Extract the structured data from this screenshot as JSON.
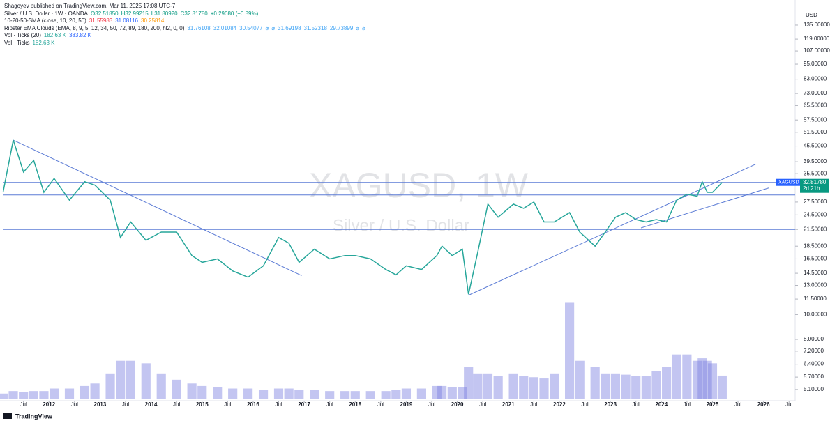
{
  "chart_data": {
    "type": "line",
    "publisher": "Shagoyev published on TradingView.com, Mar 11, 2025 17:08 UTC-7",
    "legend": [
      {
        "label": "Silver / U.S. Dollar · 1W · OANDA",
        "values": [
          "O32.51850",
          "H32.99215",
          "L31.80920",
          "C32.81780",
          "+0.29080 (+0.89%)"
        ],
        "color": "#089981"
      },
      {
        "label": "10-20-50-SMA (close, 10, 20, 50)",
        "values": [
          "31.55983",
          "31.08116",
          "30.25814"
        ],
        "colors": [
          "#f23645",
          "#2962ff",
          "#ff9800"
        ]
      },
      {
        "label": "Ripster EMA Clouds (EMA, 8, 9, 5, 12, 34, 50, 72, 89, 180, 200, hl2, 0, 0)",
        "values": [
          "31.76108",
          "32.01084",
          "30.54077",
          "⌀",
          "⌀",
          "31.69198",
          "31.52318",
          "29.73899",
          "⌀",
          "⌀"
        ],
        "color": "#42a5f5"
      },
      {
        "label": "Vol · Ticks (20)",
        "values": [
          "182.63 K",
          "383.82 K"
        ],
        "colors": [
          "#26a69a",
          "#2962ff"
        ]
      },
      {
        "label": "Vol · Ticks",
        "values": [
          "182.63 K"
        ],
        "color": "#26a69a"
      }
    ],
    "watermark": "XAGUSD, 1W",
    "watermark_subtitle": "Silver / U.S. Dollar",
    "currency": "USD",
    "symbol": "XAGUSD",
    "last_price_label": "32.81780",
    "countdown": "2d 21h",
    "footer": "TradingView",
    "log_scale": true,
    "xlim": [
      2011.04,
      2026.62
    ],
    "ylim": [
      4.61,
      149.2
    ],
    "y2lim": [
      0,
      840
    ],
    "xticks": [
      {
        "value": 2011.5,
        "label": "Jul"
      },
      2012,
      {
        "value": 2012.5,
        "label": "Jul"
      },
      2013,
      {
        "value": 2013.5,
        "label": "Jul"
      },
      2014,
      {
        "value": 2014.5,
        "label": "Jul"
      },
      2015,
      {
        "value": 2015.5,
        "label": "Jul"
      },
      2016,
      {
        "value": 2016.5,
        "label": "Jul"
      },
      2017,
      {
        "value": 2017.5,
        "label": "Jul"
      },
      2018,
      {
        "value": 2018.5,
        "label": "Jul"
      },
      2019,
      {
        "value": 2019.5,
        "label": "Jul"
      },
      2020,
      {
        "value": 2020.5,
        "label": "Jul"
      },
      2021,
      {
        "value": 2021.5,
        "label": "Jul"
      },
      2022,
      {
        "value": 2022.5,
        "label": "Jul"
      },
      2023,
      {
        "value": 2023.5,
        "label": "Jul"
      },
      2024,
      {
        "value": 2024.5,
        "label": "Jul"
      },
      2025,
      {
        "value": 2025.5,
        "label": "Jul"
      },
      2026,
      {
        "value": 2026.5,
        "label": "Jul"
      }
    ],
    "yticks": [
      {
        "value": 135,
        "label": "135.00000"
      },
      {
        "value": 119,
        "label": "119.00000"
      },
      {
        "value": 107,
        "label": "107.00000"
      },
      {
        "value": 95,
        "label": "95.00000"
      },
      {
        "value": 83,
        "label": "83.00000"
      },
      {
        "value": 73,
        "label": "73.00000"
      },
      {
        "value": 65.5,
        "label": "65.50000"
      },
      {
        "value": 57.5,
        "label": "57.50000"
      },
      {
        "value": 51.5,
        "label": "51.50000"
      },
      {
        "value": 45.5,
        "label": "45.50000"
      },
      {
        "value": 39.5,
        "label": "39.50000"
      },
      {
        "value": 35.5,
        "label": "35.50000"
      },
      {
        "value": 27.5,
        "label": "27.50000"
      },
      {
        "value": 24.5,
        "label": "24.50000"
      },
      {
        "value": 21.5,
        "label": "21.50000"
      },
      {
        "value": 18.5,
        "label": "18.50000"
      },
      {
        "value": 16.5,
        "label": "16.50000"
      },
      {
        "value": 14.5,
        "label": "14.50000"
      },
      {
        "value": 13,
        "label": "13.00000"
      },
      {
        "value": 11.5,
        "label": "11.50000"
      },
      {
        "value": 10,
        "label": "10.00000"
      },
      {
        "value": 8,
        "label": "8.00000"
      },
      {
        "value": 7.2,
        "label": "7.20000"
      },
      {
        "value": 6.4,
        "label": "6.40000"
      },
      {
        "value": 5.7,
        "label": "5.70000"
      },
      {
        "value": 5.1,
        "label": "5.10000"
      }
    ],
    "x": [
      2011.1,
      2011.3,
      2011.5,
      2011.7,
      2011.9,
      2012.1,
      2012.4,
      2012.7,
      2012.9,
      2013.2,
      2013.4,
      2013.6,
      2013.9,
      2014.2,
      2014.5,
      2014.8,
      2015.0,
      2015.3,
      2015.6,
      2015.9,
      2016.2,
      2016.5,
      2016.7,
      2016.9,
      2017.2,
      2017.5,
      2017.8,
      2018.0,
      2018.3,
      2018.6,
      2018.8,
      2019.0,
      2019.3,
      2019.6,
      2019.7,
      2019.9,
      2020.1,
      2020.22,
      2020.4,
      2020.6,
      2020.8,
      2021.1,
      2021.3,
      2021.5,
      2021.7,
      2021.9,
      2022.2,
      2022.4,
      2022.7,
      2022.9,
      2023.1,
      2023.3,
      2023.5,
      2023.7,
      2023.9,
      2024.1,
      2024.3,
      2024.5,
      2024.7,
      2024.8,
      2024.9,
      2025.0,
      2025.19
    ],
    "series": [
      {
        "name": "XAGUSD",
        "color": "#26a69a",
        "values": [
          30,
          48,
          36,
          40,
          30,
          34,
          28,
          33,
          32,
          28,
          20,
          23,
          19.5,
          21,
          21,
          17,
          16,
          16.5,
          14.8,
          14,
          15.5,
          20,
          19,
          16,
          18,
          16.5,
          17,
          17,
          16.5,
          15,
          14.3,
          15.5,
          15,
          17,
          18.5,
          17,
          18,
          12,
          17.5,
          27,
          24,
          27,
          26,
          27.5,
          23,
          23,
          25,
          21,
          18.5,
          21,
          24,
          25,
          23.5,
          23,
          23.5,
          23,
          28,
          29.5,
          29,
          33,
          30,
          30,
          32.8178
        ]
      },
      {
        "name": "Vol · Ticks",
        "color": "#7b7fe0",
        "axis": "y2",
        "values": [
          40,
          60,
          50,
          60,
          60,
          80,
          80,
          100,
          120,
          200,
          300,
          300,
          280,
          200,
          150,
          120,
          100,
          90,
          80,
          80,
          70,
          80,
          80,
          70,
          70,
          60,
          60,
          60,
          60,
          60,
          70,
          80,
          80,
          100,
          100,
          90,
          90,
          250,
          200,
          200,
          180,
          200,
          180,
          170,
          160,
          200,
          760,
          300,
          250,
          200,
          200,
          190,
          180,
          180,
          220,
          250,
          350,
          350,
          300,
          320,
          300,
          280,
          182.63
        ]
      }
    ],
    "levels": [
      32.8178,
      29.3,
      21.5
    ],
    "level_color": "#5b7bd5",
    "trendlines": [
      {
        "x": [
          2011.3,
          2016.95
        ],
        "values": [
          48,
          14.2
        ]
      },
      {
        "x": [
          2020.22,
          2025.85
        ],
        "values": [
          11.9,
          38.7
        ]
      },
      {
        "x": [
          2023.6,
          2026.1
        ],
        "values": [
          21.8,
          31.2
        ]
      }
    ]
  }
}
